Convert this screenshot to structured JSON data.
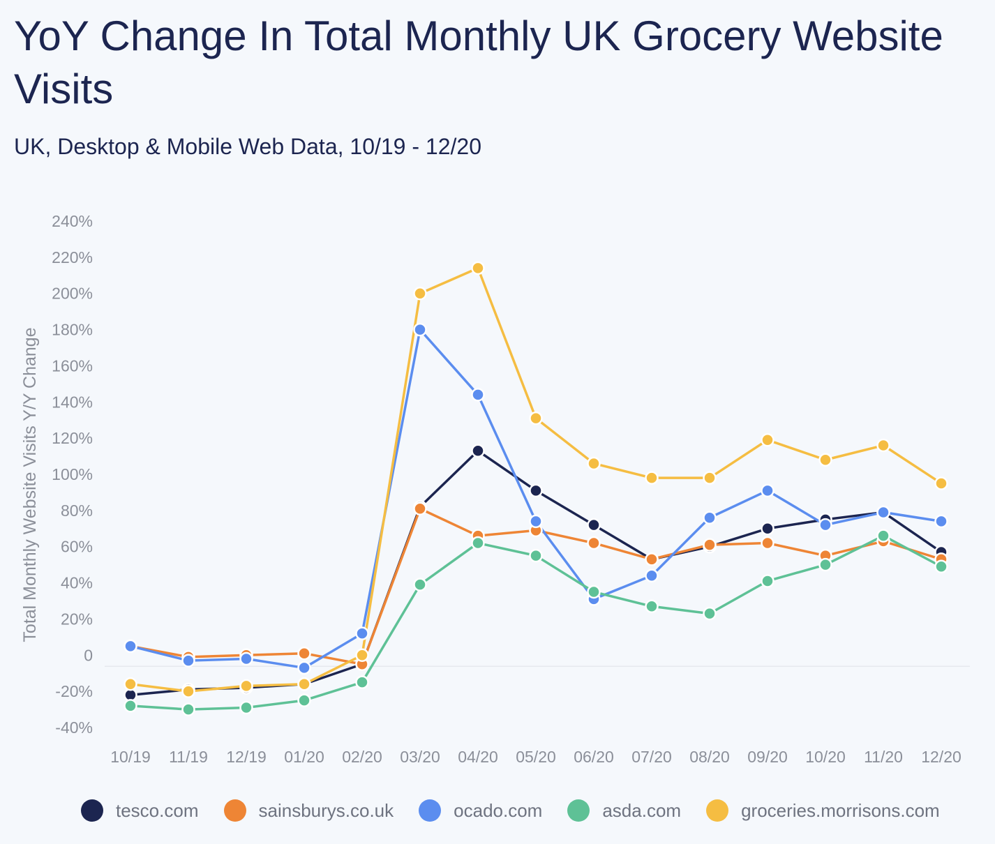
{
  "title": "YoY Change In Total Monthly UK Grocery Website Visits",
  "subtitle": "UK, Desktop & Mobile Web Data, 10/19 - 12/20",
  "chart_data": {
    "type": "line",
    "ylabel": "Total Monthly Website Visits Y/Y Change",
    "xlabel": "",
    "ylim": [
      -40,
      240
    ],
    "yticks": [
      -40,
      -20,
      0,
      20,
      40,
      60,
      80,
      100,
      120,
      140,
      160,
      180,
      200,
      220,
      240
    ],
    "ytick_labels": [
      "-40%",
      "-20%",
      "0",
      "20%",
      "40%",
      "60%",
      "80%",
      "100%",
      "120%",
      "140%",
      "160%",
      "180%",
      "200%",
      "220%",
      "240%"
    ],
    "categories": [
      "10/19",
      "11/19",
      "12/19",
      "01/20",
      "02/20",
      "03/20",
      "04/20",
      "05/20",
      "06/20",
      "07/20",
      "08/20",
      "09/20",
      "10/20",
      "11/20",
      "12/20"
    ],
    "legend_position": "bottom",
    "series": [
      {
        "name": "tesco.com",
        "color": "#1c2550",
        "values": [
          -22,
          -19,
          -18,
          -16,
          -5,
          82,
          113,
          91,
          72,
          53,
          60,
          70,
          75,
          79,
          57
        ]
      },
      {
        "name": "sainsburys.co.uk",
        "color": "#ee8535",
        "values": [
          5,
          -1,
          0,
          1,
          -5,
          81,
          66,
          69,
          62,
          53,
          61,
          62,
          55,
          63,
          53
        ]
      },
      {
        "name": "ocado.com",
        "color": "#5b8def",
        "values": [
          5,
          -3,
          -2,
          -7,
          12,
          180,
          144,
          74,
          31,
          44,
          76,
          91,
          72,
          79,
          74
        ]
      },
      {
        "name": "asda.com",
        "color": "#5ec196",
        "values": [
          -28,
          -30,
          -29,
          -25,
          -15,
          39,
          62,
          55,
          35,
          27,
          23,
          41,
          50,
          66,
          49
        ]
      },
      {
        "name": "groceries.morrisons.com",
        "color": "#f5bd42",
        "values": [
          -16,
          -20,
          -17,
          -16,
          0,
          200,
          214,
          131,
          106,
          98,
          98,
          119,
          108,
          116,
          95
        ]
      }
    ]
  }
}
